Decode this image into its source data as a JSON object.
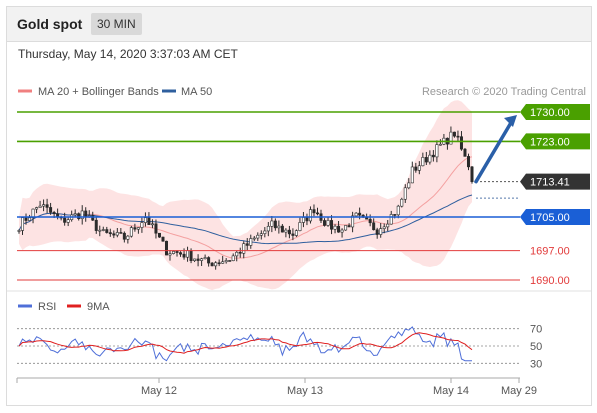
{
  "header": {
    "title": "Gold spot",
    "timeframe": "30 MIN",
    "timestamp": "Thursday, May 14, 2020 3:37:03 AM CET"
  },
  "legend": {
    "items": [
      {
        "label": "MA 20 + Bollinger Bands",
        "color": "#f08080"
      },
      {
        "label": "MA 50",
        "color": "#2f5f9e"
      }
    ],
    "credit": "Research © 2020 Trading Central"
  },
  "rsi_legend": {
    "items": [
      {
        "label": "RSI",
        "color": "#4f6fd8"
      },
      {
        "label": "9MA",
        "color": "#e02020"
      }
    ]
  },
  "chart_data": {
    "type": "candlestick",
    "y_range": [
      1685,
      1735
    ],
    "x_ticks": [
      "May 12",
      "May 13",
      "May 14",
      "May 29"
    ],
    "last_price": {
      "value": 1713.41,
      "label": "1713.41"
    },
    "levels": [
      {
        "value": 1730.0,
        "label": "1730.00",
        "kind": "resistance"
      },
      {
        "value": 1723.0,
        "label": "1723.00",
        "kind": "resistance"
      },
      {
        "value": 1705.0,
        "label": "1705.00",
        "kind": "pivot"
      },
      {
        "value": 1697.0,
        "label": "1697.00",
        "kind": "support"
      },
      {
        "value": 1690.0,
        "label": "1690.00",
        "kind": "support"
      }
    ],
    "forecast_arrow": {
      "from": 1713.41,
      "to": 1730.0
    },
    "rsi": {
      "range": [
        20,
        80
      ],
      "levels": [
        70,
        50,
        30
      ],
      "level_labels": [
        "70",
        "50",
        "30"
      ]
    },
    "colors": {
      "resistance": "#4aa000",
      "pivot": "#1a5fd6",
      "support": "#e23b3b",
      "last": "#333333",
      "candle": "#2b2b2b"
    }
  }
}
